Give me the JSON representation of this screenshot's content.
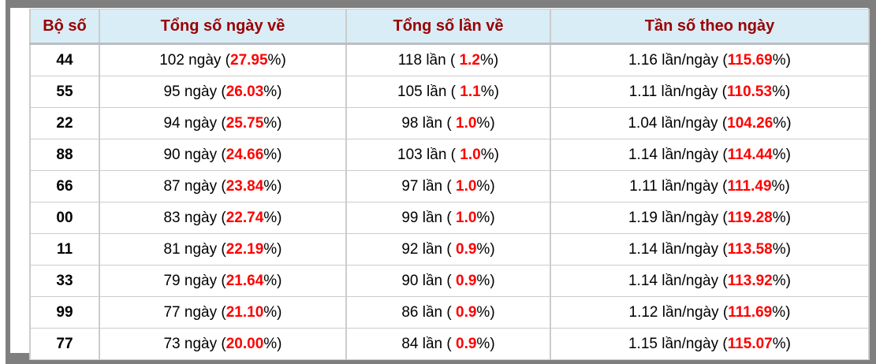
{
  "colors": {
    "header_bg": "#d9edf7",
    "header_text": "#990000",
    "highlight": "#ff0000",
    "frame": "#7f7f7f",
    "grid": "#cccccc",
    "header_border": "#babec2"
  },
  "table": {
    "columns": [
      {
        "key": "pair",
        "label": "Bộ số"
      },
      {
        "key": "days",
        "label": "Tổng số ngày về"
      },
      {
        "key": "times",
        "label": "Tổng số lần về"
      },
      {
        "key": "freq",
        "label": "Tần số theo ngày"
      }
    ],
    "rows": [
      {
        "pair": "44",
        "days": {
          "pre": "102 ngày (",
          "red": "27.95",
          "post": "%)"
        },
        "times": {
          "pre": "118 lần ( ",
          "red": "1.2",
          "post": "%)"
        },
        "freq": {
          "pre": "1.16 lần/ngày (",
          "red": "115.69",
          "post": "%)"
        }
      },
      {
        "pair": "55",
        "days": {
          "pre": "95 ngày (",
          "red": "26.03",
          "post": "%)"
        },
        "times": {
          "pre": "105 lần ( ",
          "red": "1.1",
          "post": "%)"
        },
        "freq": {
          "pre": "1.11 lần/ngày (",
          "red": "110.53",
          "post": "%)"
        }
      },
      {
        "pair": "22",
        "days": {
          "pre": "94 ngày (",
          "red": "25.75",
          "post": "%)"
        },
        "times": {
          "pre": "98 lần ( ",
          "red": "1.0",
          "post": "%)"
        },
        "freq": {
          "pre": "1.04 lần/ngày (",
          "red": "104.26",
          "post": "%)"
        }
      },
      {
        "pair": "88",
        "days": {
          "pre": "90 ngày (",
          "red": "24.66",
          "post": "%)"
        },
        "times": {
          "pre": "103 lần ( ",
          "red": "1.0",
          "post": "%)"
        },
        "freq": {
          "pre": "1.14 lần/ngày (",
          "red": "114.44",
          "post": "%)"
        }
      },
      {
        "pair": "66",
        "days": {
          "pre": "87 ngày (",
          "red": "23.84",
          "post": "%)"
        },
        "times": {
          "pre": "97 lần ( ",
          "red": "1.0",
          "post": "%)"
        },
        "freq": {
          "pre": "1.11 lần/ngày (",
          "red": "111.49",
          "post": "%)"
        }
      },
      {
        "pair": "00",
        "days": {
          "pre": "83 ngày (",
          "red": "22.74",
          "post": "%)"
        },
        "times": {
          "pre": "99 lần ( ",
          "red": "1.0",
          "post": "%)"
        },
        "freq": {
          "pre": "1.19 lần/ngày (",
          "red": "119.28",
          "post": "%)"
        }
      },
      {
        "pair": "11",
        "days": {
          "pre": "81 ngày (",
          "red": "22.19",
          "post": "%)"
        },
        "times": {
          "pre": "92 lần ( ",
          "red": "0.9",
          "post": "%)"
        },
        "freq": {
          "pre": "1.14 lần/ngày (",
          "red": "113.58",
          "post": "%)"
        }
      },
      {
        "pair": "33",
        "days": {
          "pre": "79 ngày (",
          "red": "21.64",
          "post": "%)"
        },
        "times": {
          "pre": "90 lần ( ",
          "red": "0.9",
          "post": "%)"
        },
        "freq": {
          "pre": "1.14 lần/ngày (",
          "red": "113.92",
          "post": "%)"
        }
      },
      {
        "pair": "99",
        "days": {
          "pre": "77 ngày (",
          "red": "21.10",
          "post": "%)"
        },
        "times": {
          "pre": "86 lần ( ",
          "red": "0.9",
          "post": "%)"
        },
        "freq": {
          "pre": "1.12 lần/ngày (",
          "red": "111.69",
          "post": "%)"
        }
      },
      {
        "pair": "77",
        "days": {
          "pre": "73 ngày (",
          "red": "20.00",
          "post": "%)"
        },
        "times": {
          "pre": "84 lần ( ",
          "red": "0.9",
          "post": "%)"
        },
        "freq": {
          "pre": "1.15 lần/ngày (",
          "red": "115.07",
          "post": "%)"
        }
      }
    ]
  }
}
